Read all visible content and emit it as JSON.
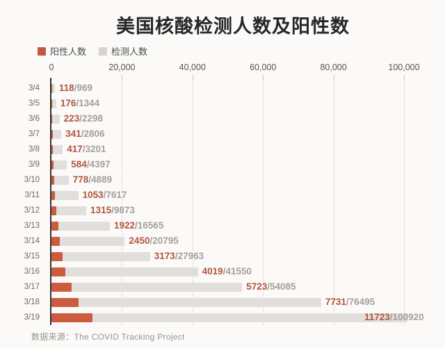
{
  "title": "美国核酸检测人数及阳性数",
  "source": "数据来源：The COVID Tracking Project",
  "legend": [
    {
      "label": "阳性人数",
      "color": "#bf5a40"
    },
    {
      "label": "检测人数",
      "color": "#d6d4d0"
    }
  ],
  "colors": {
    "background": "#fbfaf8",
    "title": "#262626",
    "positive_bar": "#cb5c40",
    "tests_bar": "#e1dfdc",
    "positive_label": "#b2543c",
    "total_label": "#a3a09b",
    "axis": "#35332f",
    "grid": "#ccc9c3",
    "tick_label": "#56544f",
    "date_label": "#6b6965",
    "source_text": "#96948e"
  },
  "chart_data": {
    "type": "bar",
    "orientation": "horizontal",
    "title": "美国核酸检测人数及阳性数",
    "categories": [
      "3/4",
      "3/5",
      "3/6",
      "3/7",
      "3/8",
      "3/9",
      "3/10",
      "3/11",
      "3/12",
      "3/13",
      "3/14",
      "3/15",
      "3/16",
      "3/17",
      "3/18",
      "3/19"
    ],
    "series": [
      {
        "name": "阳性人数",
        "values": [
          118,
          176,
          223,
          341,
          417,
          584,
          778,
          1053,
          1315,
          1922,
          2450,
          3173,
          4019,
          5723,
          7731,
          11723
        ]
      },
      {
        "name": "检测人数",
        "values": [
          969,
          1344,
          2298,
          2806,
          3201,
          4397,
          4889,
          7617,
          9873,
          16565,
          20795,
          27963,
          41550,
          54085,
          76495,
          100920
        ]
      }
    ],
    "bar_labels": [
      "118/969",
      "176/1344",
      "223/2298",
      "341/2806",
      "417/3201",
      "584/4397",
      "778/4889",
      "1053/7617",
      "1315/9873",
      "1922/16565",
      "2450/20795",
      "3173/27963",
      "4019/41550",
      "5723/54085",
      "7731/76495",
      "11723/100920"
    ],
    "xlim": [
      0,
      100000
    ],
    "xticks": [
      0,
      20000,
      40000,
      60000,
      80000,
      100000
    ],
    "xtick_labels": [
      "0",
      "20,000",
      "40,000",
      "60,000",
      "80,000",
      "100,000"
    ],
    "grid": "vertical dotted at each x tick",
    "legend_position": "top-left"
  }
}
